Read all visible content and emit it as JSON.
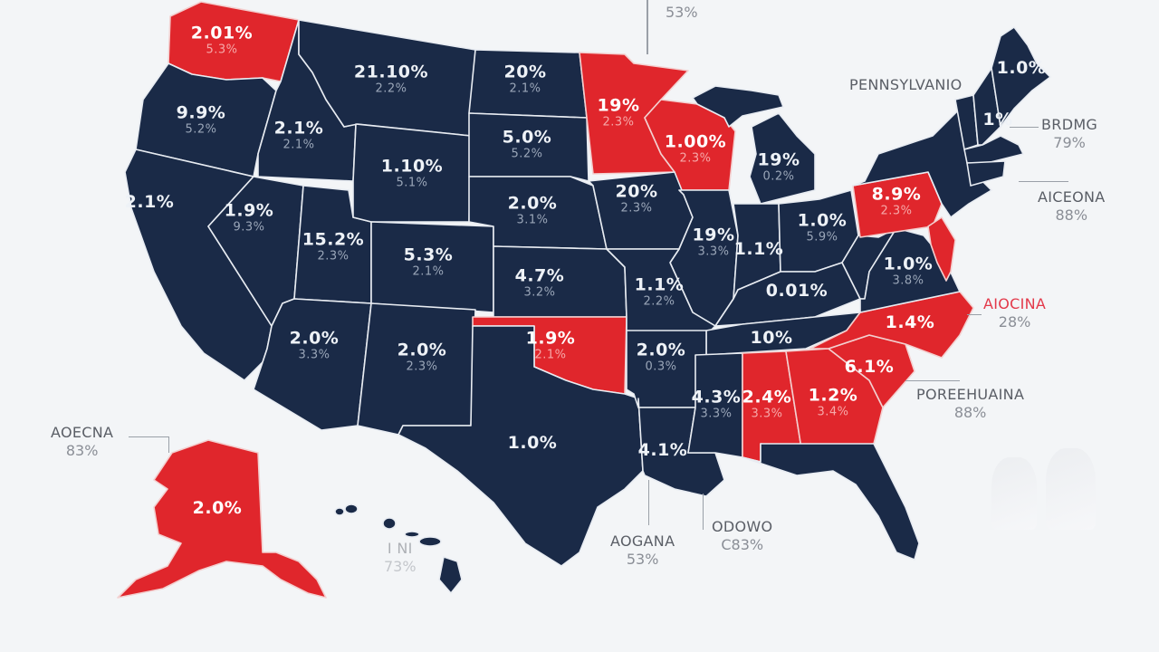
{
  "colors": {
    "background": "#f3f5f7",
    "state_blue": "#1a2a47",
    "state_red": "#e0262c",
    "border": "#e8ecf2",
    "callout_text": "#5a5e66",
    "callout_red": "#e3394a"
  },
  "states": [
    {
      "id": "WA",
      "color": "red",
      "v1": "2.01%",
      "v2": "5.3%"
    },
    {
      "id": "OR",
      "color": "blue",
      "v1": "9.9%",
      "v2": "5.2%"
    },
    {
      "id": "ID",
      "color": "blue",
      "v1": "2.1%",
      "v2": "2.1%"
    },
    {
      "id": "MT",
      "color": "blue",
      "v1": "21.10%",
      "v2": "2.2%"
    },
    {
      "id": "ND",
      "color": "blue",
      "v1": "20%",
      "v2": "2.1%"
    },
    {
      "id": "MN",
      "color": "red",
      "v1": "19%",
      "v2": "2.3%"
    },
    {
      "id": "WI",
      "color": "red",
      "v1": "1.00%",
      "v2": "2.3%"
    },
    {
      "id": "MI",
      "color": "blue",
      "v1": "19%",
      "v2": "0.2%"
    },
    {
      "id": "SD",
      "color": "blue",
      "v1": "5.0%",
      "v2": "5.2%"
    },
    {
      "id": "WY",
      "color": "blue",
      "v1": "1.10%",
      "v2": "5.1%"
    },
    {
      "id": "CA",
      "color": "blue",
      "v1": "2.1%",
      "v2": ""
    },
    {
      "id": "NV",
      "color": "blue",
      "v1": "1.9%",
      "v2": "9.3%"
    },
    {
      "id": "UT",
      "color": "blue",
      "v1": "15.2%",
      "v2": "2.3%"
    },
    {
      "id": "CO",
      "color": "blue",
      "v1": "5.3%",
      "v2": "2.1%"
    },
    {
      "id": "NE",
      "color": "blue",
      "v1": "2.0%",
      "v2": "3.1%"
    },
    {
      "id": "IA",
      "color": "blue",
      "v1": "20%",
      "v2": "2.3%"
    },
    {
      "id": "IL",
      "color": "blue",
      "v1": "19%",
      "v2": "3.3%"
    },
    {
      "id": "KS",
      "color": "blue",
      "v1": "4.7%",
      "v2": "3.2%"
    },
    {
      "id": "MO",
      "color": "blue",
      "v1": "1.1%",
      "v2": "2.2%"
    },
    {
      "id": "IN",
      "color": "blue",
      "v1": "1.1%",
      "v2": ""
    },
    {
      "id": "OH",
      "color": "blue",
      "v1": "1.0%",
      "v2": "5.9%"
    },
    {
      "id": "PA",
      "color": "red",
      "v1": "8.9%",
      "v2": "2.3%"
    },
    {
      "id": "KY",
      "color": "blue",
      "v1": "0.01%",
      "v2": ""
    },
    {
      "id": "VA",
      "color": "blue",
      "v1": "1.0%",
      "v2": "3.8%"
    },
    {
      "id": "AZ",
      "color": "blue",
      "v1": "2.0%",
      "v2": "3.3%"
    },
    {
      "id": "NM",
      "color": "blue",
      "v1": "2.0%",
      "v2": "2.3%"
    },
    {
      "id": "OK",
      "color": "red",
      "v1": "1.9%",
      "v2": "2.1%"
    },
    {
      "id": "AR",
      "color": "blue",
      "v1": "2.0%",
      "v2": "0.3%"
    },
    {
      "id": "TN",
      "color": "blue",
      "v1": "10%",
      "v2": ""
    },
    {
      "id": "NC",
      "color": "red",
      "v1": "1.4%",
      "v2": ""
    },
    {
      "id": "TX",
      "color": "blue",
      "v1": "1.0%",
      "v2": ""
    },
    {
      "id": "MS",
      "color": "blue",
      "v1": "4.3%",
      "v2": "3.3%"
    },
    {
      "id": "AL",
      "color": "red",
      "v1": "2.4%",
      "v2": "3.3%"
    },
    {
      "id": "GA",
      "color": "red",
      "v1": "1.2%",
      "v2": "3.4%"
    },
    {
      "id": "SC",
      "color": "red",
      "v1": "6.1%",
      "v2": ""
    },
    {
      "id": "LA",
      "color": "blue",
      "v1": "4.1%",
      "v2": ""
    },
    {
      "id": "ME",
      "color": "blue",
      "v1": "1.0%",
      "v2": ""
    },
    {
      "id": "NH",
      "color": "blue",
      "v1": "1%",
      "v2": ""
    },
    {
      "id": "AK",
      "color": "red",
      "v1": "2.0%",
      "v2": ""
    },
    {
      "id": "HI",
      "color": "blue",
      "v1": "",
      "v2": ""
    }
  ],
  "callouts": [
    {
      "id": "top",
      "name": "",
      "pct": "53%"
    },
    {
      "id": "pennsylvania",
      "name": "PENNSYLVANIO",
      "pct": ""
    },
    {
      "id": "nh",
      "name": "BRDMG",
      "pct": "79%"
    },
    {
      "id": "ct",
      "name": "AICEONA",
      "pct": "88%"
    },
    {
      "id": "nc",
      "name": "AIOCINA",
      "pct": "28%"
    },
    {
      "id": "sc",
      "name": "POREEHUAINA",
      "pct": "88%"
    },
    {
      "id": "alaska",
      "name": "AOECNA",
      "pct": "83%"
    },
    {
      "id": "hawaii",
      "name": "I NI",
      "pct": "73%"
    },
    {
      "id": "texas_coast",
      "name": "AOGANA",
      "pct": "53%"
    },
    {
      "id": "louisiana",
      "name": "ODOWO",
      "pct": "C83%"
    }
  ]
}
